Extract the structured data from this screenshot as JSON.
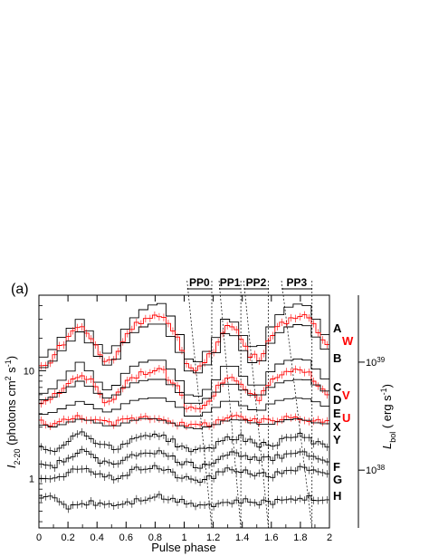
{
  "panel_label": "(a)",
  "chart_data": {
    "type": "line",
    "xlabel": "Pulse phase",
    "ylabel_left": {
      "main": "I",
      "sub": "2-20",
      "unit_pre": " (photons cm",
      "unit_sup1": "2",
      "unit_mid": " s",
      "unit_sup2": "-1",
      "unit_post": ")"
    },
    "ylabel_right": {
      "main": "L",
      "sub": "bol",
      "unit_pre": " ( erg s",
      "unit_sup": "-1",
      "unit_post": ")"
    },
    "xlim": [
      0,
      2
    ],
    "ylim": [
      0.35,
      50
    ],
    "yscale": "log",
    "xticks": [
      "0",
      "0.2",
      "0.4",
      "0.6",
      "0.8",
      "1",
      "1.2",
      "1.4",
      "1.6",
      "1.8",
      "2"
    ],
    "xtick_values": [
      0,
      0.2,
      0.4,
      0.6,
      0.8,
      1.0,
      1.2,
      1.4,
      1.6,
      1.8,
      2.0
    ],
    "left_ticks": [
      {
        "value": 1,
        "label": "1"
      },
      {
        "value": 10,
        "label": "10"
      }
    ],
    "right_ticks": [
      {
        "value": 1.2,
        "base": "10",
        "exp": "38"
      },
      {
        "value": 12,
        "base": "10",
        "exp": "39"
      }
    ],
    "intervals": [
      {
        "label": "PP0",
        "start": 1.02,
        "end": 1.19
      },
      {
        "label": "PP1",
        "start": 1.24,
        "end": 1.39
      },
      {
        "label": "PP2",
        "start": 1.41,
        "end": 1.58
      },
      {
        "label": "PP3",
        "start": 1.67,
        "end": 1.88
      }
    ],
    "curves": [
      {
        "label": "A",
        "color": "#000000",
        "style": "step",
        "amplitude": 0.28,
        "ratio": 1.35,
        "values": {
          "0.0": 15.8,
          "0.1": 22.0,
          "0.25": 31.0,
          "0.35": 17.0,
          "0.5": 16.0,
          "0.78": 42.0,
          "0.95": 22.0,
          "1.05": 14.5,
          "1.15": 18.0,
          "1.28": 31.0,
          "1.35": 30.0,
          "1.5": 16.0,
          "1.8": 42.0,
          "1.95": 25.0,
          "2.0": 21.0
        }
      },
      {
        "label": "W",
        "color": "#ff0000",
        "style": "step-error"
      },
      {
        "label": "B",
        "color": "#000000",
        "style": "step"
      },
      {
        "label": "C",
        "color": "#000000",
        "style": "step"
      },
      {
        "label": "V",
        "color": "#ff0000",
        "style": "step-error"
      },
      {
        "label": "D",
        "color": "#000000",
        "style": "step"
      },
      {
        "label": "E",
        "color": "#000000",
        "style": "step"
      },
      {
        "label": "U",
        "color": "#ff0000",
        "style": "step-error"
      },
      {
        "label": "X",
        "color": "#000000",
        "style": "step"
      },
      {
        "label": "Y",
        "color": "#000000",
        "style": "step-error"
      },
      {
        "label": "F",
        "color": "#000000",
        "style": "step-error"
      },
      {
        "label": "G",
        "color": "#000000",
        "style": "step-error"
      },
      {
        "label": "H",
        "color": "#000000",
        "style": "step-error"
      }
    ]
  }
}
